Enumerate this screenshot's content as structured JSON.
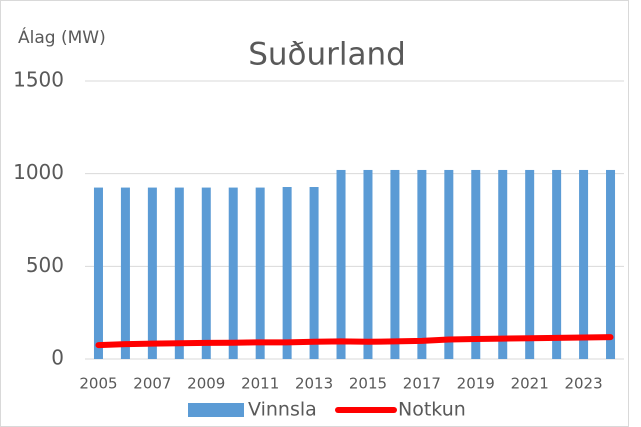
{
  "chart_data": {
    "type": "bar_line",
    "title": "Suðurland",
    "y_label": "Álag (MW)",
    "categories": [
      "2005",
      null,
      "2007",
      null,
      "2009",
      null,
      "2011",
      null,
      "2013",
      null,
      "2015",
      null,
      "2017",
      null,
      "2019",
      null,
      "2021",
      null,
      "2023",
      null
    ],
    "series": [
      {
        "name": "Vinnsla",
        "type": "bar",
        "color": "#5b9bd5",
        "values": [
          925,
          925,
          925,
          925,
          925,
          925,
          925,
          928,
          928,
          1020,
          1020,
          1020,
          1020,
          1020,
          1020,
          1020,
          1020,
          1020,
          1020,
          1020
        ]
      },
      {
        "name": "Notkun",
        "type": "line",
        "color": "#ff0000",
        "values": [
          75,
          80,
          83,
          85,
          87,
          88,
          90,
          90,
          93,
          95,
          93,
          95,
          98,
          105,
          108,
          110,
          112,
          114,
          116,
          118
        ]
      }
    ],
    "ylim": [
      0,
      1500
    ],
    "yticks": [
      0,
      500,
      1000,
      1500
    ],
    "grid": true,
    "legend": "bottom"
  }
}
